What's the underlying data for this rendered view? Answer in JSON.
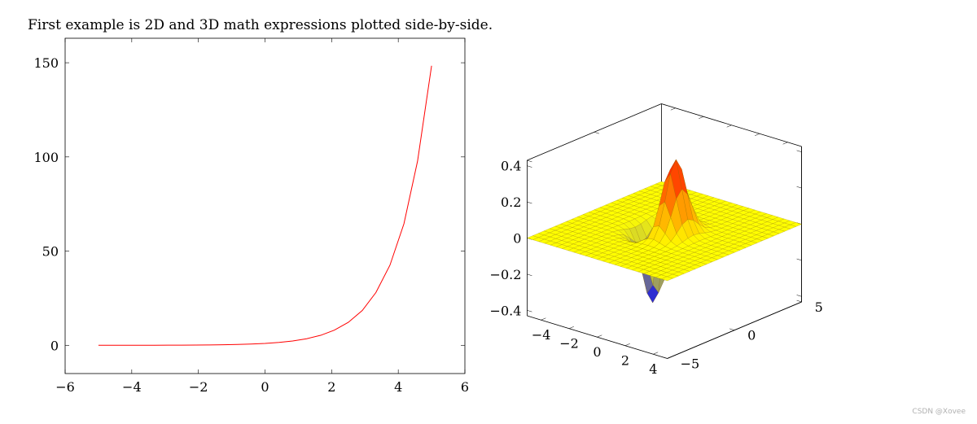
{
  "caption": "First example is 2D and 3D math expressions plotted side-by-side.",
  "watermark": "CSDN @Xovee",
  "chart_data": [
    {
      "type": "line",
      "function": "exp(x)",
      "title": "",
      "xlabel": "",
      "ylabel": "",
      "xlim": [
        -6,
        6
      ],
      "ylim": [
        -15,
        163
      ],
      "xticks": [
        -6,
        -4,
        -2,
        0,
        2,
        4,
        6
      ],
      "yticks": [
        0,
        50,
        100,
        150
      ],
      "xtick_labels": [
        "−6",
        "−4",
        "−2",
        "0",
        "2",
        "4",
        "6"
      ],
      "ytick_labels": [
        "0",
        "50",
        "100",
        "150"
      ],
      "grid": false,
      "series": [
        {
          "color": "#ff0000",
          "x": [
            -5,
            -4.58,
            -4.17,
            -3.75,
            -3.33,
            -2.92,
            -2.5,
            -2.08,
            -1.67,
            -1.25,
            -0.83,
            -0.42,
            0,
            0.42,
            0.83,
            1.25,
            1.67,
            2.08,
            2.5,
            2.92,
            3.33,
            3.75,
            4.17,
            4.58,
            5
          ],
          "y": [
            0.01,
            0.01,
            0.02,
            0.02,
            0.04,
            0.05,
            0.08,
            0.12,
            0.19,
            0.29,
            0.43,
            0.66,
            1,
            1.52,
            2.3,
            3.49,
            5.29,
            8.02,
            12.18,
            18.47,
            28.03,
            42.52,
            64.5,
            97.86,
            148.41
          ]
        }
      ]
    },
    {
      "type": "surface3d",
      "function": "x*exp(-x^2-y^2)",
      "title": "",
      "xlabel": "",
      "ylabel": "",
      "zlabel": "",
      "xlim": [
        -5,
        5
      ],
      "ylim": [
        -5,
        5
      ],
      "zlim": [
        -0.43,
        0.43
      ],
      "samples": 25,
      "colormap": [
        "#0000ff",
        "#ffff00",
        "#ff0000"
      ],
      "grid": false,
      "xtick_labels": [
        "−4",
        "−2",
        "0",
        "2",
        "4"
      ],
      "ytick_labels": [
        "−5",
        "0",
        "5"
      ],
      "ztick_labels": [
        "−0.4",
        "−0.2",
        "0",
        "0.2",
        "0.4"
      ],
      "xticks": [
        -4,
        -2,
        0,
        2,
        4
      ],
      "yticks": [
        -5,
        0,
        5
      ],
      "zticks": [
        -0.4,
        -0.2,
        0,
        0.2,
        0.4
      ]
    }
  ]
}
